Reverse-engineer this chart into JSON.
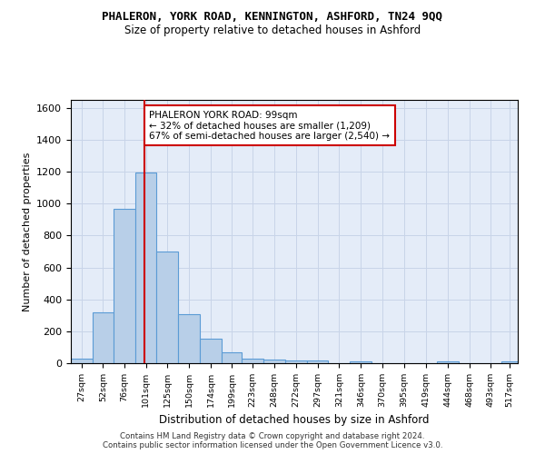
{
  "title": "PHALERON, YORK ROAD, KENNINGTON, ASHFORD, TN24 9QQ",
  "subtitle": "Size of property relative to detached houses in Ashford",
  "xlabel": "Distribution of detached houses by size in Ashford",
  "ylabel": "Number of detached properties",
  "bar_values": [
    30,
    320,
    970,
    1195,
    700,
    305,
    155,
    70,
    30,
    20,
    15,
    15,
    0,
    10,
    0,
    0,
    0,
    10,
    0,
    0,
    10
  ],
  "bin_edges": [
    14.5,
    39.5,
    63.5,
    88.5,
    113.5,
    138.5,
    163.5,
    188.5,
    211.5,
    236.5,
    261.5,
    286.5,
    311.5,
    336.5,
    361.5,
    386.5,
    411.5,
    436.5,
    461.5,
    486.5,
    511.5,
    530.0
  ],
  "xtick_labels": [
    "27sqm",
    "52sqm",
    "76sqm",
    "101sqm",
    "125sqm",
    "150sqm",
    "174sqm",
    "199sqm",
    "223sqm",
    "248sqm",
    "272sqm",
    "297sqm",
    "321sqm",
    "346sqm",
    "370sqm",
    "395sqm",
    "419sqm",
    "444sqm",
    "468sqm",
    "493sqm",
    "517sqm"
  ],
  "bar_color": "#b8cfe8",
  "bar_edgecolor": "#5b9bd5",
  "redline_x": 99,
  "ylim": [
    0,
    1650
  ],
  "yticks": [
    0,
    200,
    400,
    600,
    800,
    1000,
    1200,
    1400,
    1600
  ],
  "annotation_text": "PHALERON YORK ROAD: 99sqm\n← 32% of detached houses are smaller (1,209)\n67% of semi-detached houses are larger (2,540) →",
  "footer1": "Contains HM Land Registry data © Crown copyright and database right 2024.",
  "footer2": "Contains public sector information licensed under the Open Government Licence v3.0.",
  "grid_color": "#c8d4e8",
  "plot_bg": "#e4ecf8"
}
